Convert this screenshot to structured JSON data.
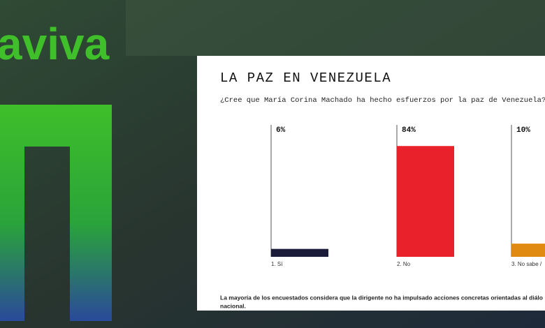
{
  "logo": "aviva",
  "chart_data": {
    "type": "bar",
    "title": "LA PAZ EN VENEZUELA",
    "subtitle": "¿Cree que María Corina Machado ha hecho esfuerzos por la paz de Venezuela?",
    "categories": [
      "1. Sí",
      "2. No",
      "3. No sabe /"
    ],
    "values": [
      6,
      84,
      10
    ],
    "value_labels": [
      "6%",
      "84%",
      "10%"
    ],
    "colors": [
      "#1b1b3a",
      "#e8212a",
      "#e08a12"
    ],
    "ylim": [
      0,
      100
    ],
    "note": [
      "La mayoría de los encuestados considera que la dirigente no ha impulsado acciones concretas orientadas al diálo",
      "nacional."
    ]
  }
}
